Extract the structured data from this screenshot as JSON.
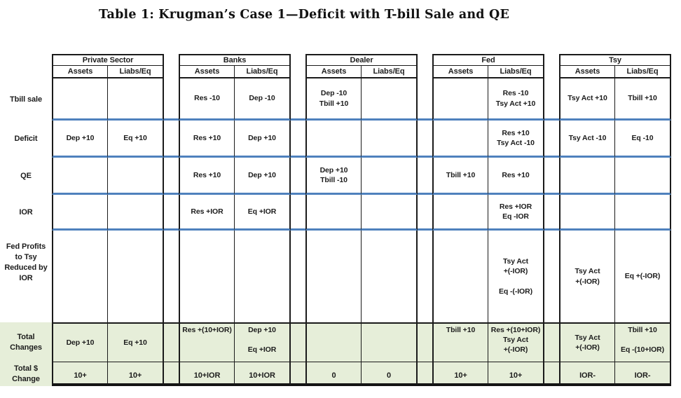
{
  "title": "Table 1:  Krugman’s Case 1—Deficit with T-bill Sale and QE",
  "colors": {
    "row_divider_blue": "#4f81bd",
    "total_band_green": "#e6eed9",
    "grid_line_black": "#1a1a1a"
  },
  "subheaders": {
    "assets": "Assets",
    "liabs": "Liabs/Eq"
  },
  "sectors": [
    {
      "name": "Private Sector"
    },
    {
      "name": "Banks"
    },
    {
      "name": "Dealer"
    },
    {
      "name": "Fed"
    },
    {
      "name": "Tsy"
    }
  ],
  "rows": [
    {
      "label": "Tbill sale",
      "cells": [
        "",
        "",
        "Res -10",
        "Dep -10",
        "Dep -10\nTbill +10",
        "",
        "",
        "Res -10\nTsy Act +10",
        "Tsy Act +10",
        "Tbill +10"
      ]
    },
    {
      "label": "Deficit",
      "cells": [
        "Dep +10",
        "Eq +10",
        "Res +10",
        "Dep +10",
        "",
        "",
        "",
        "Res +10\nTsy Act -10",
        "Tsy Act -10",
        "Eq -10"
      ]
    },
    {
      "label": "QE",
      "cells": [
        "",
        "",
        "Res +10",
        "Dep +10",
        "Dep +10\nTbill -10",
        "",
        "Tbill +10",
        "Res +10",
        "",
        ""
      ]
    },
    {
      "label": "IOR",
      "cells": [
        "",
        "",
        "Res +IOR",
        "Eq +IOR",
        "",
        "",
        "",
        "Res +IOR\nEq -IOR",
        "",
        ""
      ]
    },
    {
      "label": "Fed Profits\nto Tsy\nReduced by\nIOR",
      "cells": [
        "",
        "",
        "",
        "",
        "",
        "",
        "",
        "Tsy Act\n+(-IOR)\n\nEq -(-IOR)",
        "Tsy Act\n+(-IOR)",
        "Eq +(-IOR)"
      ]
    },
    {
      "label": "Total\nChanges",
      "cells": [
        "Dep +10",
        "Eq +10",
        "Res +(10+IOR)",
        "Dep +10\n\nEq +IOR",
        "",
        "",
        "Tbill +10",
        "Res +(10+IOR)\nTsy Act\n+(-IOR)",
        "Tsy Act\n+(-IOR)",
        "Tbill +10\n\nEq -(10+IOR)"
      ]
    },
    {
      "label": "Total $\nChange",
      "cells": [
        "10+",
        "10+",
        "10+IOR",
        "10+IOR",
        "0",
        "0",
        "10+",
        "10+",
        "IOR-",
        "IOR-"
      ]
    }
  ]
}
